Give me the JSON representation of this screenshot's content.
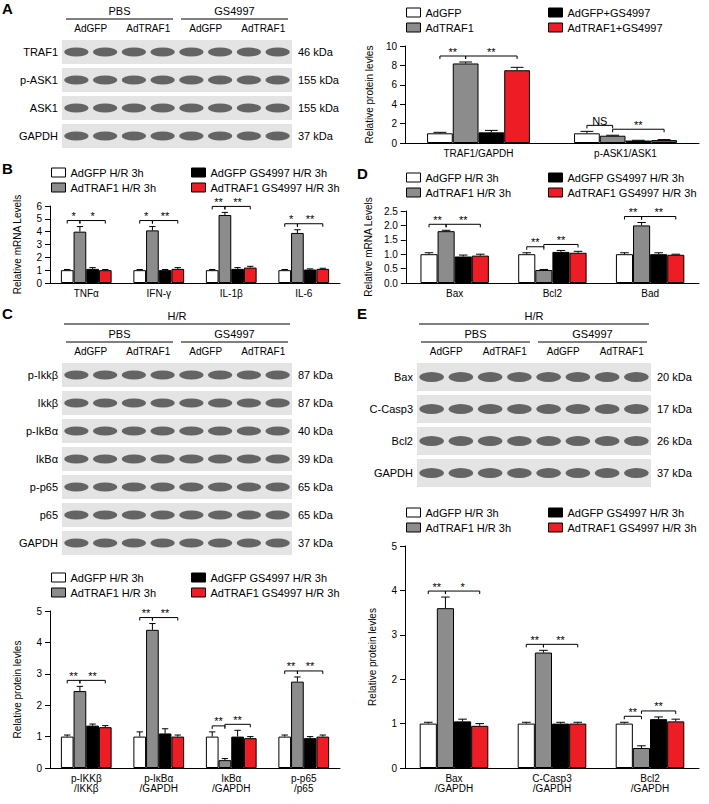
{
  "panel_labels": [
    "A",
    "B",
    "C",
    "D",
    "E"
  ],
  "blots": [
    {
      "groups": [
        "PBS",
        "GS4997"
      ],
      "lanes": [
        "AdGFP",
        "AdTRAF1",
        "AdGFP",
        "AdTRAF1"
      ],
      "rows": [
        {
          "name": "TRAF1",
          "kda": "46 kDa"
        },
        {
          "name": "p-ASK1",
          "kda": "155 kDa"
        },
        {
          "name": "ASK1",
          "kda": "155 kDa"
        },
        {
          "name": "GAPDH",
          "kda": "37 kDa"
        }
      ]
    },
    {
      "top": "H/R",
      "groups": [
        "PBS",
        "GS4997"
      ],
      "lanes": [
        "AdGFP",
        "AdTRAF1",
        "AdGFP",
        "AdTRAF1"
      ],
      "rows": [
        {
          "name": "p-Ikkβ",
          "kda": "87 kDa"
        },
        {
          "name": "Ikkβ",
          "kda": "87 kDa"
        },
        {
          "name": "p-IkBα",
          "kda": "40 kDa"
        },
        {
          "name": "IkBα",
          "kda": "39 kDa"
        },
        {
          "name": "p-p65",
          "kda": "65 kDa"
        },
        {
          "name": "p65",
          "kda": "65 kDa"
        },
        {
          "name": "GAPDH",
          "kda": "37 kDa"
        }
      ]
    },
    {
      "top": "H/R",
      "groups": [
        "PBS",
        "GS4997"
      ],
      "lanes": [
        "AdGFP",
        "AdTRAF1",
        "AdGFP",
        "AdTRAF1"
      ],
      "rows": [
        {
          "name": "Bax",
          "kda": "20 kDa"
        },
        {
          "name": "C-Casp3",
          "kda": "17 kDa"
        },
        {
          "name": "Bcl2",
          "kda": "26 kDa"
        },
        {
          "name": "GAPDH",
          "kda": "37 kDa"
        }
      ]
    }
  ],
  "chart_data": [
    {
      "type": "bar",
      "ylabel": "Relative protein levles",
      "categories": [
        "TRAF1/GAPDH",
        "p-ASK1/ASK1"
      ],
      "series": [
        {
          "name": "AdGFP",
          "color": "#ffffff",
          "values": [
            1.0,
            1.0
          ],
          "errors": [
            0.1,
            0.2
          ]
        },
        {
          "name": "AdTRAF1",
          "color": "#8c8c8c",
          "values": [
            8.2,
            0.75
          ],
          "errors": [
            0.15,
            0.05
          ]
        },
        {
          "name": "AdGFP+GS4997",
          "color": "#000000",
          "values": [
            1.1,
            0.25
          ],
          "errors": [
            0.2,
            0.03
          ]
        },
        {
          "name": "AdTRAF1+GS4997",
          "color": "#ee1c25",
          "values": [
            7.5,
            0.3
          ],
          "errors": [
            0.3,
            0.05
          ]
        }
      ],
      "ylim": [
        0,
        10
      ],
      "yticks": [
        0,
        2,
        4,
        6,
        8,
        10
      ],
      "grid": false,
      "annotations": [
        {
          "category": "TRAF1/GAPDH",
          "between": [
            "AdGFP",
            "AdTRAF1"
          ],
          "label": "**"
        },
        {
          "category": "TRAF1/GAPDH",
          "between": [
            "AdTRAF1",
            "AdTRAF1+GS4997"
          ],
          "label": "**"
        },
        {
          "category": "p-ASK1/ASK1",
          "between": [
            "AdGFP",
            "AdTRAF1"
          ],
          "label": "NS"
        },
        {
          "category": "p-ASK1/ASK1",
          "between": [
            "AdTRAF1",
            "AdTRAF1+GS4997"
          ],
          "label": "**"
        }
      ]
    },
    {
      "type": "bar",
      "ylabel": "Relative mRNA Levels",
      "categories": [
        "TNFα",
        "IFN-γ",
        "IL-1β",
        "IL-6"
      ],
      "series": [
        {
          "name": "AdGFP H/R 3h",
          "color": "#ffffff",
          "values": [
            1.0,
            1.0,
            1.0,
            1.0
          ],
          "errors": [
            0.05,
            0.05,
            0.05,
            0.05
          ]
        },
        {
          "name": "AdTRAF1 H/R 3h",
          "color": "#8c8c8c",
          "values": [
            4.0,
            4.1,
            5.3,
            3.9
          ],
          "errors": [
            0.4,
            0.3,
            0.2,
            0.25
          ]
        },
        {
          "name": "AdGFP GS4997 H/R 3h",
          "color": "#000000",
          "values": [
            1.1,
            1.0,
            1.1,
            1.05
          ],
          "errors": [
            0.1,
            0.05,
            0.1,
            0.05
          ]
        },
        {
          "name": "AdTRAF1 GS4997 H/R 3h",
          "color": "#ee1c25",
          "values": [
            1.0,
            1.1,
            1.2,
            1.1
          ],
          "errors": [
            0.05,
            0.1,
            0.1,
            0.05
          ]
        }
      ],
      "ylim": [
        0,
        6
      ],
      "yticks": [
        0,
        1,
        2,
        3,
        4,
        5,
        6
      ],
      "grid": false,
      "annotations": [
        {
          "category": "TNFα",
          "between": [
            "AdGFP H/R 3h",
            "AdTRAF1 H/R 3h"
          ],
          "label": "*"
        },
        {
          "category": "TNFα",
          "between": [
            "AdTRAF1 H/R 3h",
            "AdTRAF1 GS4997 H/R 3h"
          ],
          "label": "*"
        },
        {
          "category": "IFN-γ",
          "between": [
            "AdGFP H/R 3h",
            "AdTRAF1 H/R 3h"
          ],
          "label": "*"
        },
        {
          "category": "IFN-γ",
          "between": [
            "AdTRAF1 H/R 3h",
            "AdTRAF1 GS4997 H/R 3h"
          ],
          "label": "**"
        },
        {
          "category": "IL-1β",
          "between": [
            "AdGFP H/R 3h",
            "AdTRAF1 H/R 3h"
          ],
          "label": "**"
        },
        {
          "category": "IL-1β",
          "between": [
            "AdTRAF1 H/R 3h",
            "AdTRAF1 GS4997 H/R 3h"
          ],
          "label": "**"
        },
        {
          "category": "IL-6",
          "between": [
            "AdGFP H/R 3h",
            "AdTRAF1 H/R 3h"
          ],
          "label": "*"
        },
        {
          "category": "IL-6",
          "between": [
            "AdTRAF1 H/R 3h",
            "AdTRAF1 GS4997 H/R 3h"
          ],
          "label": "**"
        }
      ]
    },
    {
      "type": "bar",
      "ylabel": "Relative protein levles",
      "categories": [
        "p-IKKβ/IKKβ",
        "p-IκBα/GAPDH",
        "IκBα/GAPDH",
        "p-p65/p65"
      ],
      "series": [
        {
          "name": "AdGFP H/R 3h",
          "color": "#ffffff",
          "values": [
            1.0,
            1.0,
            1.0,
            1.0
          ],
          "errors": [
            0.05,
            0.15,
            0.15,
            0.05
          ]
        },
        {
          "name": "AdTRAF1 H/R 3h",
          "color": "#8c8c8c",
          "values": [
            2.45,
            4.4,
            0.25,
            2.75
          ],
          "errors": [
            0.15,
            0.2,
            0.05,
            0.15
          ]
        },
        {
          "name": "AdGFP GS4997 H/R 3h",
          "color": "#000000",
          "values": [
            1.35,
            1.1,
            1.0,
            0.95
          ],
          "errors": [
            0.05,
            0.15,
            0.2,
            0.05
          ]
        },
        {
          "name": "AdTRAF1 GS4997 H/R 3h",
          "color": "#ee1c25",
          "values": [
            1.3,
            1.0,
            0.95,
            1.0
          ],
          "errors": [
            0.05,
            0.05,
            0.05,
            0.05
          ]
        }
      ],
      "ylim": [
        0,
        5
      ],
      "yticks": [
        0,
        1,
        2,
        3,
        4,
        5
      ],
      "grid": false,
      "annotations": [
        {
          "category": "p-IKKβ/IKKβ",
          "between": [
            "AdGFP H/R 3h",
            "AdTRAF1 H/R 3h"
          ],
          "label": "**"
        },
        {
          "category": "p-IKKβ/IKKβ",
          "between": [
            "AdTRAF1 H/R 3h",
            "AdTRAF1 GS4997 H/R 3h"
          ],
          "label": "**"
        },
        {
          "category": "p-IκBα/GAPDH",
          "between": [
            "AdGFP H/R 3h",
            "AdTRAF1 H/R 3h"
          ],
          "label": "**"
        },
        {
          "category": "p-IκBα/GAPDH",
          "between": [
            "AdTRAF1 H/R 3h",
            "AdTRAF1 GS4997 H/R 3h"
          ],
          "label": "**"
        },
        {
          "category": "IκBα/GAPDH",
          "between": [
            "AdGFP H/R 3h",
            "AdTRAF1 H/R 3h"
          ],
          "label": "**"
        },
        {
          "category": "IκBα/GAPDH",
          "between": [
            "AdTRAF1 H/R 3h",
            "AdTRAF1 GS4997 H/R 3h"
          ],
          "label": "**"
        },
        {
          "category": "p-p65/p65",
          "between": [
            "AdGFP H/R 3h",
            "AdTRAF1 H/R 3h"
          ],
          "label": "**"
        },
        {
          "category": "p-p65/p65",
          "between": [
            "AdTRAF1 H/R 3h",
            "AdTRAF1 GS4997 H/R 3h"
          ],
          "label": "**"
        }
      ]
    },
    {
      "type": "bar",
      "ylabel": "Relative mRNA Levels",
      "categories": [
        "Bax",
        "Bcl2",
        "Bad"
      ],
      "series": [
        {
          "name": "AdGFP H/R 3h",
          "color": "#ffffff",
          "values": [
            1.0,
            1.0,
            1.0
          ],
          "errors": [
            0.05,
            0.05,
            0.05
          ]
        },
        {
          "name": "AdTRAF1 H/R 3h",
          "color": "#8c8c8c",
          "values": [
            1.8,
            0.45,
            2.0
          ],
          "errors": [
            0.03,
            0.02,
            0.1
          ]
        },
        {
          "name": "AdGFP GS4997 H/R 3h",
          "color": "#000000",
          "values": [
            0.92,
            1.08,
            1.0
          ],
          "errors": [
            0.05,
            0.05,
            0.05
          ]
        },
        {
          "name": "AdTRAF1 GS4997 H/R 3h",
          "color": "#ee1c25",
          "values": [
            0.95,
            1.05,
            0.98
          ],
          "errors": [
            0.05,
            0.05,
            0.02
          ]
        }
      ],
      "ylim": [
        0,
        2.5
      ],
      "yticks": [
        {
          "value": 0,
          "label": "0.0"
        },
        {
          "value": 0.5,
          "label": "0.5"
        },
        {
          "value": 1,
          "label": "1.0"
        },
        {
          "value": 1.5,
          "label": "1.5"
        },
        {
          "value": 2,
          "label": "2.0"
        },
        {
          "value": 2.5,
          "label": "2.5"
        }
      ],
      "grid": false,
      "annotations": [
        {
          "category": "Bax",
          "between": [
            "AdGFP H/R 3h",
            "AdTRAF1 H/R 3h"
          ],
          "label": "**"
        },
        {
          "category": "Bax",
          "between": [
            "AdTRAF1 H/R 3h",
            "AdTRAF1 GS4997 H/R 3h"
          ],
          "label": "**"
        },
        {
          "category": "Bcl2",
          "between": [
            "AdGFP H/R 3h",
            "AdTRAF1 H/R 3h"
          ],
          "label": "**"
        },
        {
          "category": "Bcl2",
          "between": [
            "AdTRAF1 H/R 3h",
            "AdTRAF1 GS4997 H/R 3h"
          ],
          "label": "**"
        },
        {
          "category": "Bad",
          "between": [
            "AdGFP H/R 3h",
            "AdTRAF1 H/R 3h"
          ],
          "label": "**"
        },
        {
          "category": "Bad",
          "between": [
            "AdTRAF1 H/R 3h",
            "AdTRAF1 GS4997 H/R 3h"
          ],
          "label": "**"
        }
      ]
    },
    {
      "type": "bar",
      "ylabel": "Relative protein levles",
      "categories": [
        "Bax/GAPDH",
        "C-Casp3/GAPDH",
        "Bcl2/GAPDH"
      ],
      "series": [
        {
          "name": "AdGFP H/R 3h",
          "color": "#ffffff",
          "values": [
            1.0,
            1.0,
            1.0
          ],
          "errors": [
            0.03,
            0.03,
            0.03
          ]
        },
        {
          "name": "AdTRAF1 H/R 3h",
          "color": "#8c8c8c",
          "values": [
            3.6,
            2.6,
            0.45
          ],
          "errors": [
            0.25,
            0.05,
            0.05
          ]
        },
        {
          "name": "AdGFP GS4997 H/R 3h",
          "color": "#000000",
          "values": [
            1.05,
            1.0,
            1.1
          ],
          "errors": [
            0.05,
            0.03,
            0.05
          ]
        },
        {
          "name": "AdTRAF1 GS4997 H/R 3h",
          "color": "#ee1c25",
          "values": [
            0.95,
            1.0,
            1.05
          ],
          "errors": [
            0.05,
            0.03,
            0.05
          ]
        }
      ],
      "ylim": [
        0,
        5
      ],
      "yticks": [
        0,
        1,
        2,
        3,
        4,
        5
      ],
      "grid": false,
      "annotations": [
        {
          "category": "Bax/GAPDH",
          "between": [
            "AdGFP H/R 3h",
            "AdTRAF1 H/R 3h"
          ],
          "label": "**"
        },
        {
          "category": "Bax/GAPDH",
          "between": [
            "AdTRAF1 H/R 3h",
            "AdTRAF1 GS4997 H/R 3h"
          ],
          "label": "*"
        },
        {
          "category": "C-Casp3/GAPDH",
          "between": [
            "AdGFP H/R 3h",
            "AdTRAF1 H/R 3h"
          ],
          "label": "**"
        },
        {
          "category": "C-Casp3/GAPDH",
          "between": [
            "AdTRAF1 H/R 3h",
            "AdTRAF1 GS4997 H/R 3h"
          ],
          "label": "**"
        },
        {
          "category": "Bcl2/GAPDH",
          "between": [
            "AdGFP H/R 3h",
            "AdTRAF1 H/R 3h"
          ],
          "label": "**"
        },
        {
          "category": "Bcl2/GAPDH",
          "between": [
            "AdTRAF1 H/R 3h",
            "AdTRAF1 GS4997 H/R 3h"
          ],
          "label": "**"
        }
      ]
    }
  ]
}
